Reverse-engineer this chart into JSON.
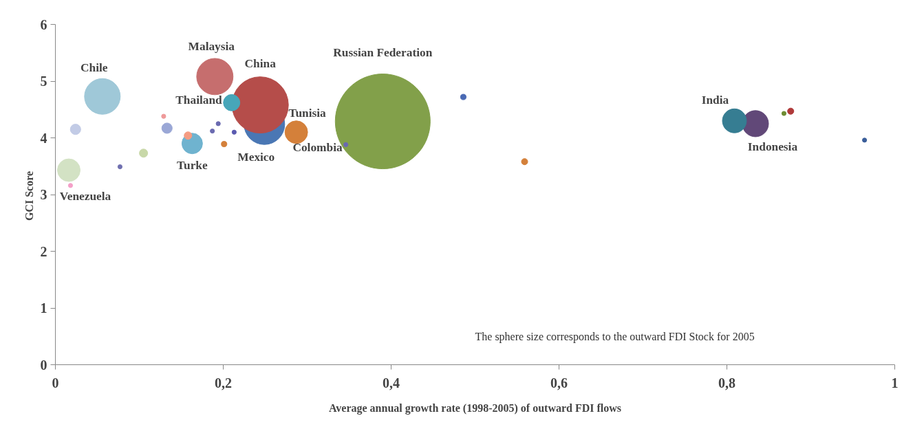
{
  "chart_data": {
    "type": "bubble",
    "xlabel": "Average annual growth rate (1998-2005) of outward FDI flows",
    "ylabel": "GCI  Score",
    "xlim": [
      0,
      1
    ],
    "ylim": [
      0,
      6
    ],
    "xticks": [
      0,
      {
        "value": 0.2,
        "label": "0,2"
      },
      {
        "value": 0.4,
        "label": "0,4"
      },
      {
        "value": 0.6,
        "label": "0,6"
      },
      {
        "value": 0.8,
        "label": "0,8"
      },
      1
    ],
    "yticks": [
      0,
      1,
      2,
      3,
      4,
      5,
      6
    ],
    "grid": false,
    "series": [
      {
        "name": "Russian Federation",
        "color": "#82a04a",
        "x": [
          0.39
        ],
        "values": [
          4.29
        ],
        "sizes": [
          1
        ]
      },
      {
        "name": "Mexico",
        "color": "#4a77b4",
        "x": [
          0.249
        ],
        "values": [
          4.24
        ],
        "sizes": [
          0.183
        ]
      },
      {
        "name": "China",
        "color": "#b54d4a",
        "x": [
          0.244
        ],
        "values": [
          4.58
        ],
        "sizes": [
          0.353
        ]
      },
      {
        "name": "Malaysia",
        "color": "#c66e6e",
        "x": [
          0.19
        ],
        "values": [
          5.08
        ],
        "sizes": [
          0.147
        ]
      },
      {
        "name": "Chile",
        "color": "#9fc8d8",
        "x": [
          0.056
        ],
        "values": [
          4.73
        ],
        "sizes": [
          0.142
        ]
      },
      {
        "name": "Tunisia",
        "color": "#d4803a",
        "x": [
          0.287
        ],
        "values": [
          4.1
        ],
        "sizes": [
          0.057
        ]
      },
      {
        "name": "Indonesia",
        "color": "#614878",
        "x": [
          0.834
        ],
        "values": [
          4.25
        ],
        "sizes": [
          0.076
        ]
      },
      {
        "name": "India",
        "color": "#367d92",
        "x": [
          0.809
        ],
        "values": [
          4.3
        ],
        "sizes": [
          0.064
        ]
      },
      {
        "name": "Venezuela",
        "color": "#d3e2c4",
        "x": [
          0.016
        ],
        "values": [
          3.43
        ],
        "sizes": [
          0.057
        ]
      },
      {
        "name": "Turke",
        "color": "#6fb3cf",
        "x": [
          0.163
        ],
        "values": [
          3.9
        ],
        "sizes": [
          0.047
        ]
      },
      {
        "name": "Thailand",
        "color": "#47a6b9",
        "x": [
          0.21
        ],
        "values": [
          4.62
        ],
        "sizes": [
          0.03
        ]
      },
      {
        "name": "Colombia",
        "color": "#6a6ab0",
        "x": [
          0.346
        ],
        "values": [
          3.88
        ],
        "sizes": [
          0.002
        ]
      },
      {
        "colors": [
          "#c2cbe6",
          "#9aa7d6",
          "#c8d8a8",
          "#f59c82",
          "#d4803a",
          "#ef9a9a",
          "#f4a0c8",
          "#7070b0",
          "#6a6ab0",
          "#6a6ab0",
          "#5a5ab0",
          "#4a6ab4",
          "#d4803a",
          "#6e8c32",
          "#b03a3a",
          "#3a5e9a"
        ],
        "x": [
          0.024,
          0.133,
          0.105,
          0.158,
          0.201,
          0.129,
          0.018,
          0.077,
          0.187,
          0.194,
          0.213,
          0.486,
          0.559,
          0.868,
          0.876,
          0.964
        ],
        "values": [
          4.15,
          4.17,
          3.73,
          4.04,
          3.89,
          4.38,
          3.16,
          3.49,
          4.12,
          4.25,
          4.1,
          4.72,
          3.58,
          4.43,
          4.47,
          3.96
        ],
        "sizes": [
          0.012,
          0.012,
          0.0076,
          0.0064,
          0.0034,
          0.002,
          0.002,
          0.002,
          0.002,
          0.002,
          0.002,
          0.0034,
          0.0043,
          0.002,
          0.0043,
          0.002
        ]
      }
    ],
    "annotations": [
      "The sphere size corresponds to the outward FDI Stock for 2005"
    ]
  }
}
